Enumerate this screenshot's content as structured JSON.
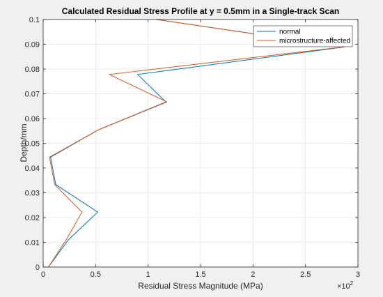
{
  "chart_data": {
    "type": "line",
    "title": "Calculated Residual Stress Profile at y = 0.5mm in a Single-track Scan",
    "xlabel": "Residual Stress Magnitude (MPa)",
    "ylabel": "Depth/mm",
    "x_exponent_label": "×10",
    "x_exponent_power": "2",
    "xlim": [
      0,
      3
    ],
    "ylim": [
      0,
      0.1
    ],
    "xticks": [
      0,
      0.5,
      1,
      1.5,
      2,
      2.5,
      3
    ],
    "xtick_labels": [
      "0",
      "0.5",
      "1",
      "1.5",
      "2",
      "2.5",
      "3"
    ],
    "yticks": [
      0,
      0.01,
      0.02,
      0.03,
      0.04,
      0.05,
      0.06,
      0.07,
      0.08,
      0.09,
      0.1
    ],
    "ytick_labels": [
      "0",
      "0.01",
      "0.02",
      "0.03",
      "0.04",
      "0.05",
      "0.06",
      "0.07",
      "0.08",
      "0.09",
      "0.1"
    ],
    "grid": true,
    "legend_position": "top-right",
    "series": [
      {
        "name": "normal",
        "color": "#0072BD",
        "points": [
          [
            0.05,
            0
          ],
          [
            0.24,
            0.011
          ],
          [
            0.52,
            0.0222
          ],
          [
            0.12,
            0.0333
          ],
          [
            0.07,
            0.0444
          ],
          [
            0.53,
            0.0555
          ],
          [
            1.17,
            0.0667
          ],
          [
            0.9,
            0.0778
          ],
          [
            2.87,
            0.0889
          ],
          [
            1.08,
            0.1
          ]
        ]
      },
      {
        "name": "microstructure-affected",
        "color": "#D95319",
        "points": [
          [
            0.05,
            0
          ],
          [
            0.22,
            0.011
          ],
          [
            0.37,
            0.0222
          ],
          [
            0.11,
            0.0333
          ],
          [
            0.06,
            0.0444
          ],
          [
            0.53,
            0.0555
          ],
          [
            1.18,
            0.0667
          ],
          [
            0.63,
            0.0778
          ],
          [
            2.86,
            0.0889
          ],
          [
            1.08,
            0.1
          ]
        ]
      }
    ]
  }
}
